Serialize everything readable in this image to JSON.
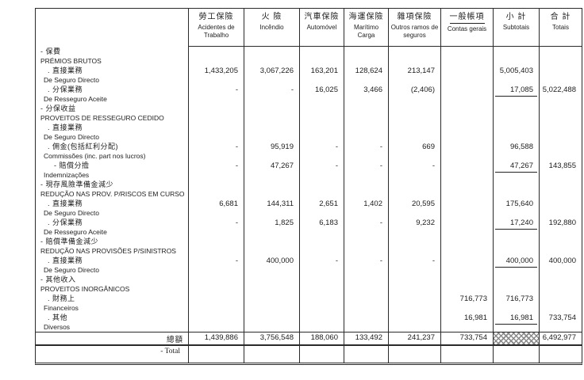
{
  "colors": {
    "ink": "#1c1c1c",
    "border": "#2a2a2a",
    "paper": "#ffffff"
  },
  "table": {
    "columns": [
      {
        "zh": "勞工保險",
        "pt": "Acidentes de Trabalho"
      },
      {
        "zh": "火 險",
        "pt": "Incêndio"
      },
      {
        "zh": "汽車保險",
        "pt": "Automóvel"
      },
      {
        "zh": "海運保險",
        "pt": "Marítimo Carga"
      },
      {
        "zh": "雜項保險",
        "pt": "Outros ramos de seguros"
      },
      {
        "zh": "一般帳項",
        "pt": "Contas gerais"
      },
      {
        "zh": "小 計",
        "pt": "Subtotais"
      },
      {
        "zh": "合 計",
        "pt": "Totais"
      }
    ],
    "rows": [
      {
        "zh": "- 保費",
        "pt": "PRÉMIOS BRUTOS",
        "indent": 0,
        "values": [
          "",
          "",
          "",
          "",
          "",
          "",
          "",
          ""
        ],
        "rule_cols": []
      },
      {
        "zh": ". 直接業務",
        "pt": "De Seguro Directo",
        "indent": 1,
        "values": [
          "1,433,205",
          "3,067,226",
          "163,201",
          "128,624",
          "213,147",
          "",
          "5,005,403",
          ""
        ],
        "rule_cols": []
      },
      {
        "zh": ". 分保業務",
        "pt": "De Resseguro Aceite",
        "indent": 1,
        "values": [
          "-",
          "-",
          "16,025",
          "3,466",
          "(2,406)",
          "",
          "17,085",
          "5,022,488"
        ],
        "rule_cols": [
          6
        ]
      },
      {
        "zh": "- 分保收益",
        "pt": "PROVEITOS DE RESSEGURO CEDIDO",
        "indent": 0,
        "values": [
          "",
          "",
          "",
          "",
          "",
          "",
          "",
          ""
        ],
        "rule_cols": []
      },
      {
        "zh": ". 直接業務",
        "pt": "De Seguro Directo",
        "indent": 1,
        "values": [
          "",
          "",
          "",
          "",
          "",
          "",
          "",
          ""
        ],
        "rule_cols": []
      },
      {
        "zh": ". 佣金(包括紅利分配)",
        "pt": "Commissões (inc. part nos lucros)",
        "indent": 1,
        "values": [
          "-",
          "95,919",
          "-",
          "-",
          "669",
          "",
          "96,588",
          ""
        ],
        "rule_cols": []
      },
      {
        "zh": "- 賠償分擔",
        "pt": "Indemnizações",
        "indent": 2,
        "values": [
          "-",
          "47,267",
          "-",
          "-",
          "-",
          "",
          "47,267",
          "143,855"
        ],
        "rule_cols": [
          6
        ]
      },
      {
        "zh": "- 現存風險準備金減少",
        "pt": "REDUÇÃO NAS PROV. P/RISCOS EM CURSO",
        "indent": 0,
        "values": [
          "",
          "",
          "",
          "",
          "",
          "",
          "",
          ""
        ],
        "rule_cols": []
      },
      {
        "zh": ". 直接業務",
        "pt": "De Seguro Directo",
        "indent": 1,
        "values": [
          "6,681",
          "144,311",
          "2,651",
          "1,402",
          "20,595",
          "",
          "175,640",
          ""
        ],
        "rule_cols": []
      },
      {
        "zh": ". 分保業務",
        "pt": "De Resseguro Aceite",
        "indent": 1,
        "values": [
          "-",
          "1,825",
          "6,183",
          "-",
          "9,232",
          "",
          "17,240",
          "192,880"
        ],
        "rule_cols": [
          6
        ]
      },
      {
        "zh": "- 賠償準備金減少",
        "pt": "REDUÇÃO NAS PROVISÕES P/SINISTROS",
        "indent": 0,
        "values": [
          "",
          "",
          "",
          "",
          "",
          "",
          "",
          ""
        ],
        "rule_cols": []
      },
      {
        "zh": ". 直接業務",
        "pt": "De Seguro Directo",
        "indent": 1,
        "values": [
          "-",
          "400,000",
          "-",
          "-",
          "-",
          "",
          "400,000",
          "400,000"
        ],
        "rule_cols": [
          6
        ]
      },
      {
        "zh": "- 其他收入",
        "pt": "PROVEITOS INORGÂNICOS",
        "indent": 0,
        "values": [
          "",
          "",
          "",
          "",
          "",
          "",
          "",
          ""
        ],
        "rule_cols": []
      },
      {
        "zh": ". 財務上",
        "pt": "Financeiros",
        "indent": 1,
        "values": [
          "",
          "",
          "",
          "",
          "",
          "716,773",
          "716,773",
          ""
        ],
        "rule_cols": []
      },
      {
        "zh": ". 其他",
        "pt": "Diversos",
        "indent": 1,
        "values": [
          "",
          "",
          "",
          "",
          "",
          "16,981",
          "16,981",
          "733,754"
        ],
        "rule_cols": [
          6
        ]
      }
    ],
    "total_row": {
      "zh": "總額",
      "pt": "- Total",
      "values": [
        "1,439,886",
        "3,756,548",
        "188,060",
        "133,492",
        "241,237",
        "733,754",
        "",
        "6,492,977"
      ],
      "hatch_col": 6
    }
  }
}
